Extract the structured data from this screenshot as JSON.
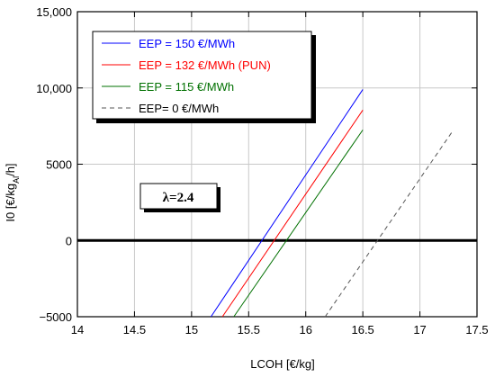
{
  "chart_data": {
    "type": "line",
    "xlabel": "LCOH [€/kg]",
    "ylabel": {
      "main": "I0 [€/kg",
      "sub": "Al",
      "tail": "/h]"
    },
    "xlim": [
      14,
      17.5
    ],
    "ylim": [
      -5000,
      15000
    ],
    "x_ticks": [
      14,
      14.5,
      15,
      15.5,
      16,
      16.5,
      17,
      17.5
    ],
    "x_tick_labels": [
      "14",
      "14.5",
      "15",
      "15.5",
      "16",
      "16.5",
      "17",
      "17.5"
    ],
    "y_ticks": [
      -5000,
      0,
      5000,
      10000,
      15000
    ],
    "y_tick_labels": [
      "−5000",
      "0",
      "5000",
      "10,000",
      "15,000"
    ],
    "grid": true,
    "legend_position": "top-left",
    "zero_line": true,
    "annotation": "λ=2.4",
    "series": [
      {
        "name": "EEP = 150 €/MWh",
        "color": "#0000ff",
        "dash": "solid",
        "x": [
          15.17,
          16.5
        ],
        "y": [
          -5000,
          9900
        ]
      },
      {
        "name": "EEP = 132 €/MWh (PUN)",
        "color": "#ff0000",
        "dash": "solid",
        "x": [
          15.27,
          16.5
        ],
        "y": [
          -5000,
          8550
        ]
      },
      {
        "name": "EEP = 115 €/MWh",
        "color": "#007000",
        "dash": "solid",
        "x": [
          15.37,
          16.5
        ],
        "y": [
          -5000,
          7250
        ]
      },
      {
        "name": "EEP= 0 €/MWh",
        "color": "#555555",
        "dash": "dashed",
        "x": [
          16.17,
          17.28
        ],
        "y": [
          -5000,
          7100
        ]
      }
    ]
  }
}
